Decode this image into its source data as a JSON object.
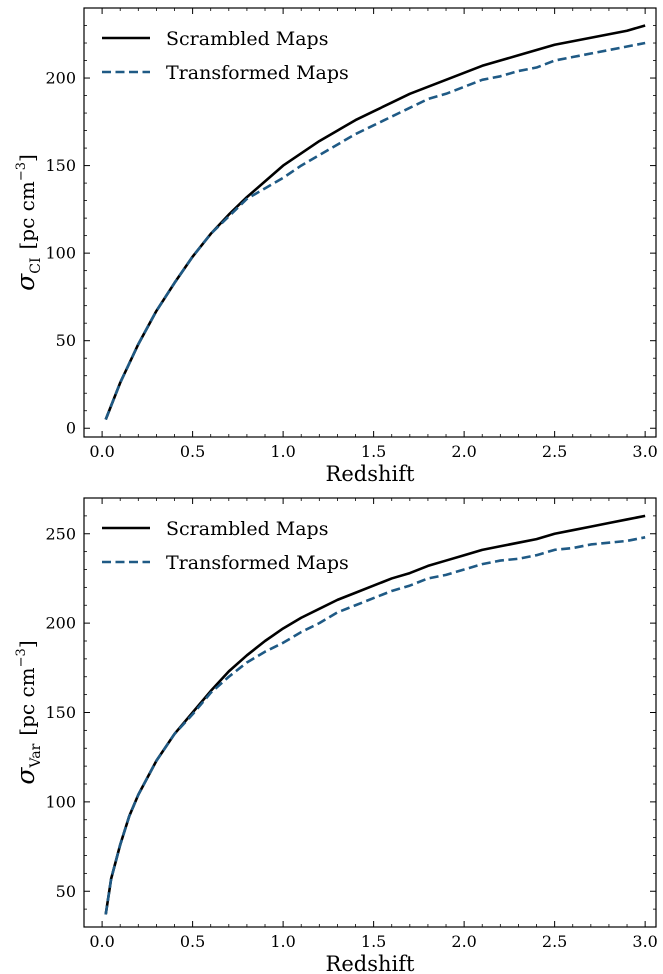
{
  "chart_data": [
    {
      "type": "line",
      "xlabel": "Redshift",
      "ylabel": {
        "symbol": "σ",
        "subscript": "CI",
        "unit": "[pc cm",
        "unit_exponent": "−3",
        "unit_close": "]"
      },
      "xlim": [
        -0.1,
        3.06
      ],
      "ylim": [
        -5,
        240
      ],
      "xticks": [
        0.0,
        0.5,
        1.0,
        1.5,
        2.0,
        2.5,
        3.0
      ],
      "xtick_labels": [
        "0.0",
        "0.5",
        "1.0",
        "1.5",
        "2.0",
        "2.5",
        "3.0"
      ],
      "yticks": [
        0,
        50,
        100,
        150,
        200
      ],
      "ytick_labels": [
        "0",
        "50",
        "100",
        "150",
        "200"
      ],
      "legend": "top-left",
      "grid": false,
      "series": [
        {
          "name": "Scrambled Maps",
          "color": "#000000",
          "style": "solid",
          "x": [
            0.02,
            0.1,
            0.2,
            0.3,
            0.4,
            0.5,
            0.6,
            0.7,
            0.8,
            0.9,
            1.0,
            1.1,
            1.2,
            1.3,
            1.4,
            1.5,
            1.6,
            1.7,
            1.8,
            1.9,
            2.0,
            2.1,
            2.2,
            2.3,
            2.4,
            2.5,
            2.6,
            2.7,
            2.8,
            2.9,
            3.0
          ],
          "values": [
            5,
            26,
            48,
            67,
            83,
            98,
            111,
            122,
            132,
            141,
            150,
            157,
            164,
            170,
            176,
            181,
            186,
            191,
            195,
            199,
            203,
            207,
            210,
            213,
            216,
            219,
            221,
            223,
            225,
            227,
            230
          ]
        },
        {
          "name": "Transformed Maps",
          "color": "#1f5a85",
          "style": "dashed",
          "x": [
            0.02,
            0.1,
            0.2,
            0.3,
            0.4,
            0.5,
            0.6,
            0.7,
            0.8,
            0.9,
            1.0,
            1.1,
            1.2,
            1.3,
            1.4,
            1.5,
            1.6,
            1.7,
            1.8,
            1.9,
            2.0,
            2.1,
            2.2,
            2.3,
            2.4,
            2.5,
            2.6,
            2.7,
            2.8,
            2.9,
            3.0
          ],
          "values": [
            5,
            26,
            48,
            67,
            83,
            98,
            111,
            121,
            131,
            137,
            143,
            150,
            156,
            162,
            168,
            173,
            178,
            183,
            188,
            191,
            195,
            199,
            201,
            204,
            206,
            210,
            212,
            214,
            216,
            218,
            220
          ]
        }
      ]
    },
    {
      "type": "line",
      "xlabel": "Redshift",
      "ylabel": {
        "symbol": "σ",
        "subscript": "Var",
        "unit": "[pc cm",
        "unit_exponent": "−3",
        "unit_close": "]"
      },
      "xlim": [
        -0.1,
        3.06
      ],
      "ylim": [
        30,
        270
      ],
      "xticks": [
        0.0,
        0.5,
        1.0,
        1.5,
        2.0,
        2.5,
        3.0
      ],
      "xtick_labels": [
        "0.0",
        "0.5",
        "1.0",
        "1.5",
        "2.0",
        "2.5",
        "3.0"
      ],
      "yticks": [
        50,
        100,
        150,
        200,
        250
      ],
      "ytick_labels": [
        "50",
        "100",
        "150",
        "200",
        "250"
      ],
      "legend": "top-left",
      "grid": false,
      "series": [
        {
          "name": "Scrambled Maps",
          "color": "#000000",
          "style": "solid",
          "x": [
            0.02,
            0.05,
            0.1,
            0.15,
            0.2,
            0.3,
            0.4,
            0.5,
            0.6,
            0.7,
            0.8,
            0.9,
            1.0,
            1.1,
            1.2,
            1.3,
            1.4,
            1.5,
            1.6,
            1.7,
            1.8,
            1.9,
            2.0,
            2.1,
            2.2,
            2.3,
            2.4,
            2.5,
            2.6,
            2.7,
            2.8,
            2.9,
            3.0
          ],
          "values": [
            37,
            57,
            76,
            92,
            104,
            123,
            138,
            150,
            162,
            173,
            182,
            190,
            197,
            203,
            208,
            213,
            217,
            221,
            225,
            228,
            232,
            235,
            238,
            241,
            243,
            245,
            247,
            250,
            252,
            254,
            256,
            258,
            260
          ]
        },
        {
          "name": "Transformed Maps",
          "color": "#1f5a85",
          "style": "dashed",
          "x": [
            0.02,
            0.05,
            0.1,
            0.15,
            0.2,
            0.3,
            0.4,
            0.5,
            0.6,
            0.7,
            0.8,
            0.9,
            1.0,
            1.1,
            1.2,
            1.3,
            1.4,
            1.5,
            1.6,
            1.7,
            1.8,
            1.9,
            2.0,
            2.1,
            2.2,
            2.3,
            2.4,
            2.5,
            2.6,
            2.7,
            2.8,
            2.9,
            3.0
          ],
          "values": [
            37,
            57,
            76,
            92,
            104,
            123,
            138,
            149,
            161,
            170,
            178,
            184,
            189,
            195,
            200,
            206,
            210,
            214,
            218,
            221,
            225,
            227,
            230,
            233,
            235,
            236,
            238,
            241,
            242,
            244,
            245,
            246,
            248
          ]
        }
      ]
    }
  ]
}
